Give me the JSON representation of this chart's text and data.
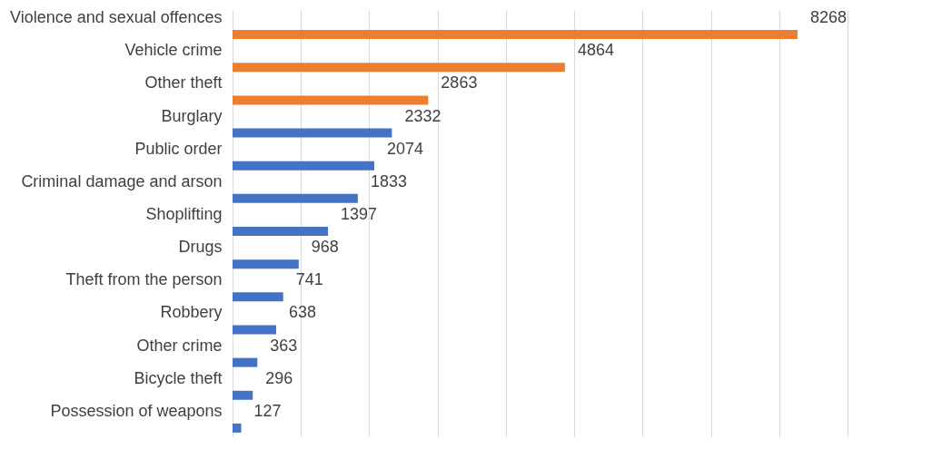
{
  "chart_data": {
    "type": "bar",
    "orientation": "horizontal",
    "categories": [
      "Violence and sexual offences",
      "Vehicle crime",
      "Other theft",
      "Burglary",
      "Public order",
      "Criminal damage and arson",
      "Shoplifting",
      "Drugs",
      "Theft from the person",
      "Robbery",
      "Other crime",
      "Bicycle theft",
      "Possession of weapons"
    ],
    "values": [
      8268,
      4864,
      2863,
      2332,
      2074,
      1833,
      1397,
      968,
      741,
      638,
      363,
      296,
      127
    ],
    "colors": [
      "#ed7d31",
      "#ed7d31",
      "#ed7d31",
      "#4472c4",
      "#4472c4",
      "#4472c4",
      "#4472c4",
      "#4472c4",
      "#4472c4",
      "#4472c4",
      "#4472c4",
      "#4472c4",
      "#4472c4"
    ],
    "xlim": [
      0,
      9000
    ],
    "xticks": [
      0,
      {
        "value": 1000,
        "label": null
      },
      {
        "value": 2000,
        "label": null
      },
      {
        "value": 3000,
        "label": null
      },
      {
        "value": 4000,
        "label": null
      },
      {
        "value": 5000,
        "label": null
      },
      {
        "value": 6000,
        "label": null
      },
      {
        "value": 7000,
        "label": null
      },
      {
        "value": 8000,
        "label": null
      },
      {
        "value": 9000,
        "label": null
      }
    ],
    "grid": "x",
    "tick_labels": "y",
    "data_labels": true
  }
}
